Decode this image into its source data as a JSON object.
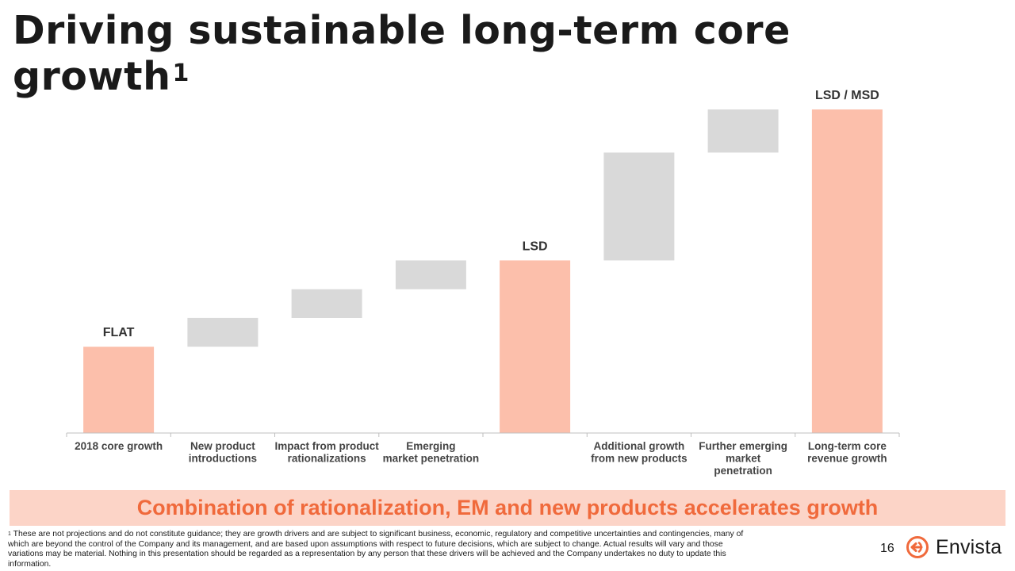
{
  "title": {
    "text": "Driving sustainable long-term core growth",
    "superscript": "1"
  },
  "chart_data": {
    "type": "bar",
    "subtype": "waterfall",
    "title": "Driving sustainable long-term core growth",
    "xlabel": "",
    "ylabel": "",
    "ylim": [
      0,
      12
    ],
    "categories": [
      [
        "2018 core growth"
      ],
      [
        "New product",
        "introductions"
      ],
      [
        "Impact from product",
        "rationalizations"
      ],
      [
        "Emerging",
        "market penetration"
      ],
      [
        ""
      ],
      [
        "Additional growth",
        "from new products"
      ],
      [
        "Further emerging",
        "market",
        "penetration"
      ],
      [
        "Long-term core",
        "revenue growth"
      ]
    ],
    "bars": [
      {
        "kind": "total",
        "base": 0,
        "top": 3.0,
        "label": "FLAT"
      },
      {
        "kind": "step",
        "base": 3.0,
        "top": 4.0
      },
      {
        "kind": "step",
        "base": 4.0,
        "top": 5.0
      },
      {
        "kind": "step",
        "base": 5.0,
        "top": 6.0
      },
      {
        "kind": "total",
        "base": 0,
        "top": 6.0,
        "label": "LSD"
      },
      {
        "kind": "step",
        "base": 6.0,
        "top": 9.75
      },
      {
        "kind": "step",
        "base": 9.75,
        "top": 11.25
      },
      {
        "kind": "total",
        "base": 0,
        "top": 11.25,
        "label": "LSD / MSD"
      }
    ],
    "colors": {
      "total": "#fcbfab",
      "step": "#d9d9d9",
      "axis": "#bfbfbf"
    },
    "grid": false,
    "legend": "none"
  },
  "banner": {
    "text": "Combination of rationalization, EM and new products accelerates growth"
  },
  "footnote": {
    "marker": "1",
    "text": "These are not projections and do not constitute guidance; they are growth drivers and are subject to significant business, economic, regulatory and competitive uncertainties and contingencies, many of which are beyond the control of the Company and its management, and are based upon assumptions with respect to future decisions, which are subject to change. Actual results will vary and those variations may be material. Nothing in this presentation should be regarded as a representation by any person that these drivers will be achieved and the Company undertakes no duty to update this information."
  },
  "page_number": "16",
  "logo": {
    "text": "Envista",
    "icon": "envista-logo-icon",
    "color": "#f06a3c"
  }
}
